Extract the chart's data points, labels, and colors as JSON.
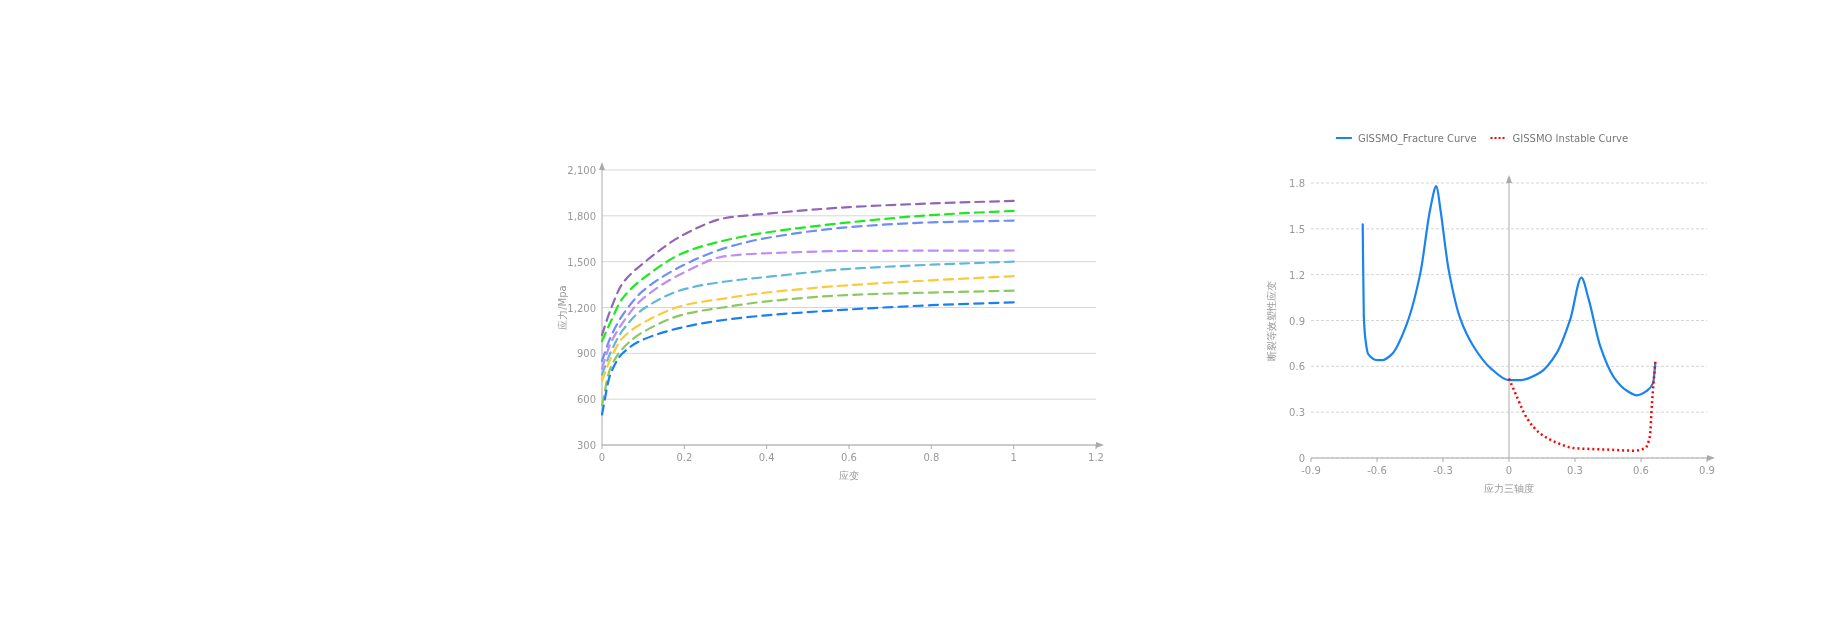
{
  "chart_data": [
    {
      "type": "line",
      "xlabel": "应变",
      "ylabel": "应力/Mpa",
      "xlim": [
        0,
        1.2
      ],
      "ylim": [
        300,
        2100
      ],
      "xticks": [
        0,
        0.2,
        0.4,
        0.6,
        0.8,
        1,
        1.2
      ],
      "yticks": [
        300,
        600,
        900,
        {
          "value": 1200,
          "label": "1,200"
        },
        {
          "value": 1500,
          "label": "1,500"
        },
        {
          "value": 1800,
          "label": "1,800"
        },
        {
          "value": 2100,
          "label": "2,100"
        }
      ],
      "grid": "y",
      "line_style": "dashed",
      "marker": "none",
      "x": [
        0,
        0.02,
        0.05,
        0.1,
        0.2,
        0.3,
        0.4,
        0.6,
        0.8,
        1.0
      ],
      "series": [
        {
          "color": "#9166b8",
          "values": [
            1020,
            1180,
            1358,
            1489,
            1679,
            1786,
            1814,
            1857,
            1881,
            1898
          ]
        },
        {
          "color": "#1ee81e",
          "values": [
            980,
            1100,
            1260,
            1390,
            1560,
            1640,
            1691,
            1757,
            1805,
            1833
          ]
        },
        {
          "color": "#6e8ef5",
          "values": [
            850,
            1000,
            1150,
            1310,
            1480,
            1590,
            1655,
            1726,
            1757,
            1769
          ]
        },
        {
          "color": "#c08cf5",
          "values": [
            800,
            960,
            1100,
            1260,
            1430,
            1536,
            1555,
            1570,
            1572,
            1573
          ]
        },
        {
          "color": "#5fb8d8",
          "values": [
            760,
            900,
            1050,
            1190,
            1320,
            1370,
            1400,
            1453,
            1480,
            1500
          ]
        },
        {
          "color": "#fcc93b",
          "values": [
            720,
            860,
            1000,
            1100,
            1215,
            1260,
            1298,
            1346,
            1378,
            1405
          ]
        },
        {
          "color": "#8cc860",
          "values": [
            560,
            800,
            930,
            1040,
            1156,
            1203,
            1240,
            1282,
            1298,
            1310
          ]
        },
        {
          "color": "#1a7ff0",
          "values": [
            500,
            760,
            900,
            990,
            1073,
            1120,
            1149,
            1187,
            1215,
            1234
          ]
        }
      ]
    },
    {
      "type": "line",
      "xlabel": "应力三轴度",
      "ylabel": "断裂等效塑性应变",
      "xlim": [
        -0.9,
        0.9
      ],
      "ylim": [
        0,
        1.8
      ],
      "xticks": [
        -0.9,
        -0.6,
        -0.3,
        0,
        0.3,
        0.6,
        0.9
      ],
      "yticks": [
        0,
        0.3,
        0.6,
        0.9,
        1.2,
        1.5,
        1.8
      ],
      "grid": "y",
      "legend": "top",
      "marker": "none",
      "series": [
        {
          "name": "GISSMO_Fracture Curve",
          "color": "#1a84ee",
          "line_style": "solid",
          "x": [
            -0.665,
            -0.66,
            -0.652,
            -0.64,
            -0.6,
            -0.577,
            -0.532,
            -0.464,
            -0.403,
            -0.358,
            -0.33,
            -0.312,
            -0.274,
            -0.221,
            -0.161,
            -0.085,
            0,
            0.052,
            0.142,
            0.218,
            0.279,
            0.329,
            0.362,
            0.415,
            0.476,
            0.536,
            0.582,
            0.627,
            0.655,
            0.665
          ],
          "values": [
            1.53,
            0.93,
            0.77,
            0.68,
            0.64,
            0.64,
            0.68,
            0.88,
            1.21,
            1.63,
            1.78,
            1.63,
            1.23,
            0.91,
            0.73,
            0.59,
            0.51,
            0.51,
            0.56,
            0.69,
            0.91,
            1.18,
            1.04,
            0.73,
            0.53,
            0.44,
            0.41,
            0.44,
            0.49,
            0.62
          ]
        },
        {
          "name": "GISSMO Instable Curve",
          "color": "#ff0000",
          "line_style": "dotted",
          "x": [
            0,
            0.036,
            0.082,
            0.142,
            0.218,
            0.294,
            0.445,
            0.567,
            0.62,
            0.64,
            0.65,
            0.665
          ],
          "values": [
            0.52,
            0.4,
            0.26,
            0.16,
            0.1,
            0.065,
            0.055,
            0.048,
            0.065,
            0.14,
            0.36,
            0.63
          ]
        }
      ]
    }
  ]
}
